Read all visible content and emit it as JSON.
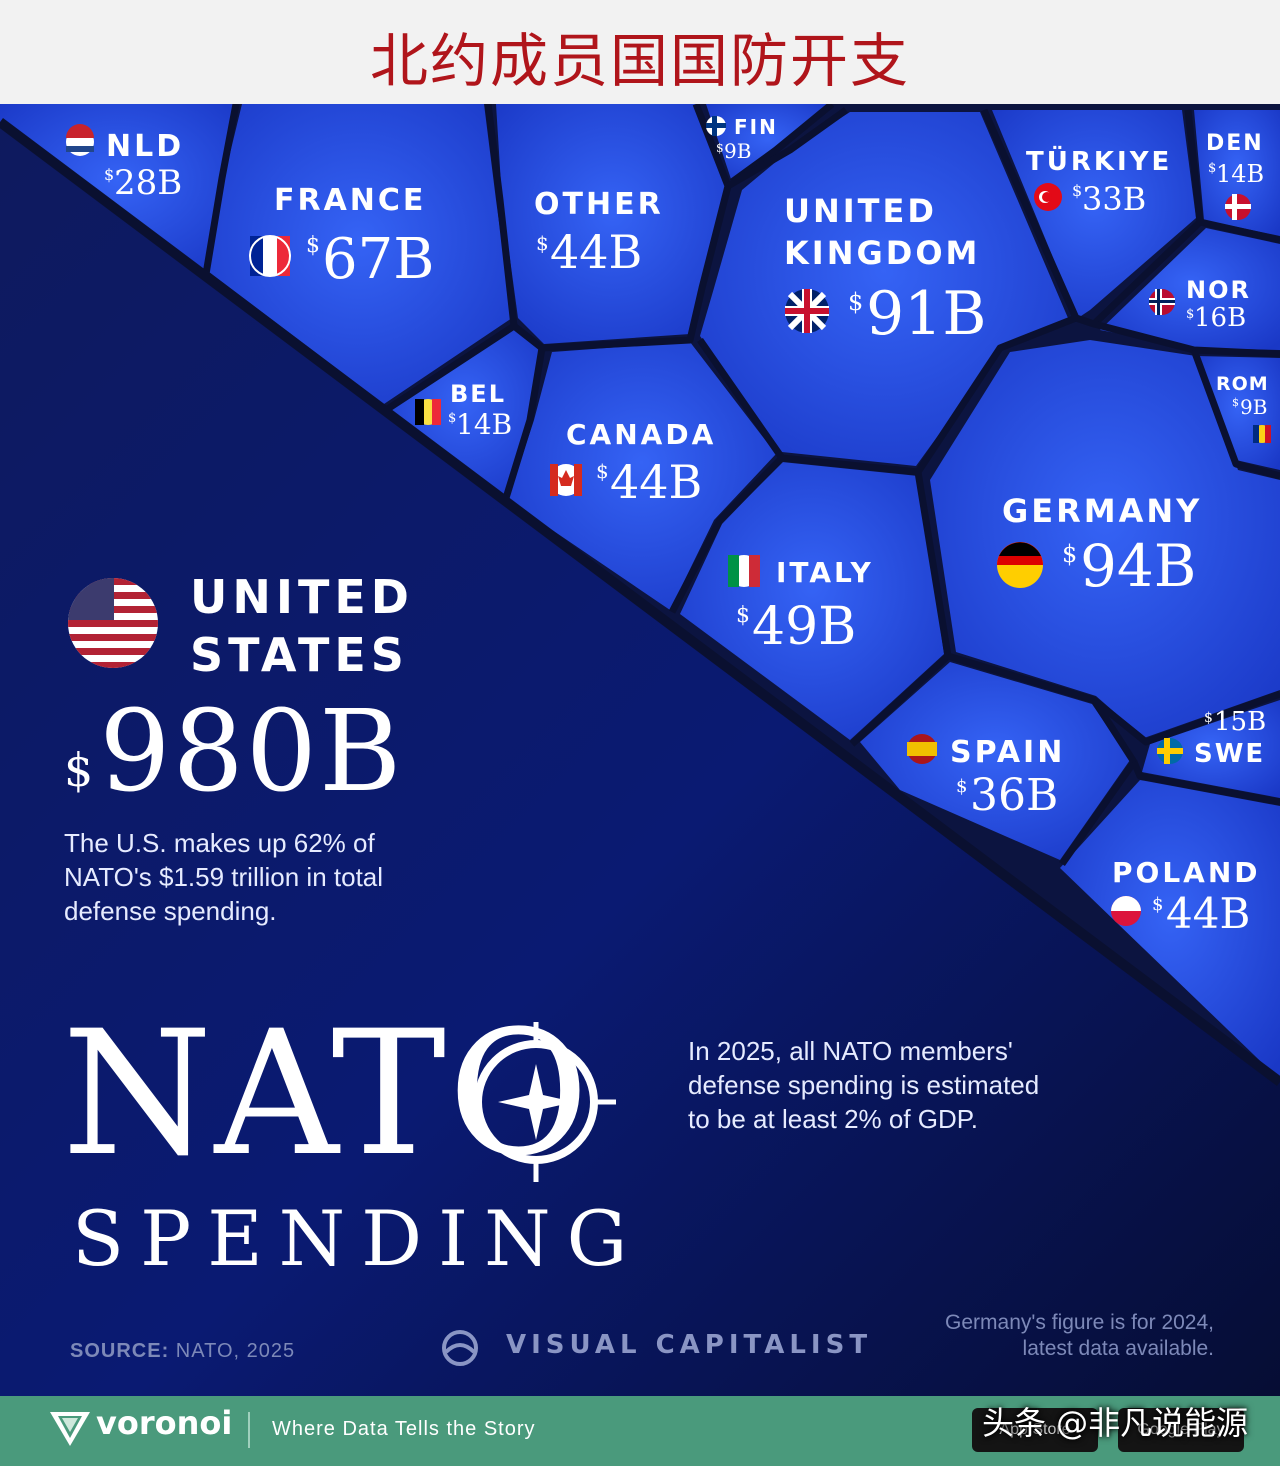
{
  "header": {
    "title": "北约成员国国防开支"
  },
  "chart_data": {
    "type": "voronoi treemap",
    "title": "NATO SPENDING",
    "unit": "B",
    "currency": "$",
    "items": [
      {
        "label": "UNITED STATES",
        "value": 980,
        "display": "980B"
      },
      {
        "label": "GERMANY",
        "value": 94,
        "display": "94B"
      },
      {
        "label": "UNITED KINGDOM",
        "value": 91,
        "display": "91B"
      },
      {
        "label": "FRANCE",
        "value": 67,
        "display": "67B"
      },
      {
        "label": "ITALY",
        "value": 49,
        "display": "49B"
      },
      {
        "label": "OTHER",
        "value": 44,
        "display": "44B"
      },
      {
        "label": "CANADA",
        "value": 44,
        "display": "44B"
      },
      {
        "label": "POLAND",
        "value": 44,
        "display": "44B"
      },
      {
        "label": "SPAIN",
        "value": 36,
        "display": "36B"
      },
      {
        "label": "TÜRKIYE",
        "value": 33,
        "display": "33B"
      },
      {
        "label": "NLD",
        "value": 28,
        "display": "28B"
      },
      {
        "label": "NOR",
        "value": 16,
        "display": "16B"
      },
      {
        "label": "SWE",
        "value": 15,
        "display": "15B"
      },
      {
        "label": "DEN",
        "value": 14,
        "display": "14B"
      },
      {
        "label": "BEL",
        "value": 14,
        "display": "14B"
      },
      {
        "label": "FIN",
        "value": 9,
        "display": "9B"
      },
      {
        "label": "ROM",
        "value": 9,
        "display": "9B"
      }
    ]
  },
  "us_note": "The U.S. makes up 62% of NATO's $1.59 trillion in total defense spending.",
  "headline": {
    "line1": "NATO",
    "line2": "SPENDING"
  },
  "gdp_note": "In 2025, all NATO members' defense spending is estimated to be at least 2% of GDP.",
  "source": {
    "label": "SOURCE:",
    "text": " NATO, 2025"
  },
  "publisher": "VISUAL CAPITALIST",
  "germany_note": "Germany's figure is for 2024, latest data available.",
  "footer": {
    "brand": "voronoi",
    "tagline": "Where Data Tells the Story",
    "watermark": "头条 @非凡说能源",
    "app_store": "App Store",
    "google_play": "Google Play"
  },
  "colors": {
    "cell_blue": "#1d3fd6",
    "cell_light": "#2f5cf0",
    "dark_bg": "#0b1550",
    "footer_green": "#4a9a7c",
    "title_red": "#b0151b"
  }
}
